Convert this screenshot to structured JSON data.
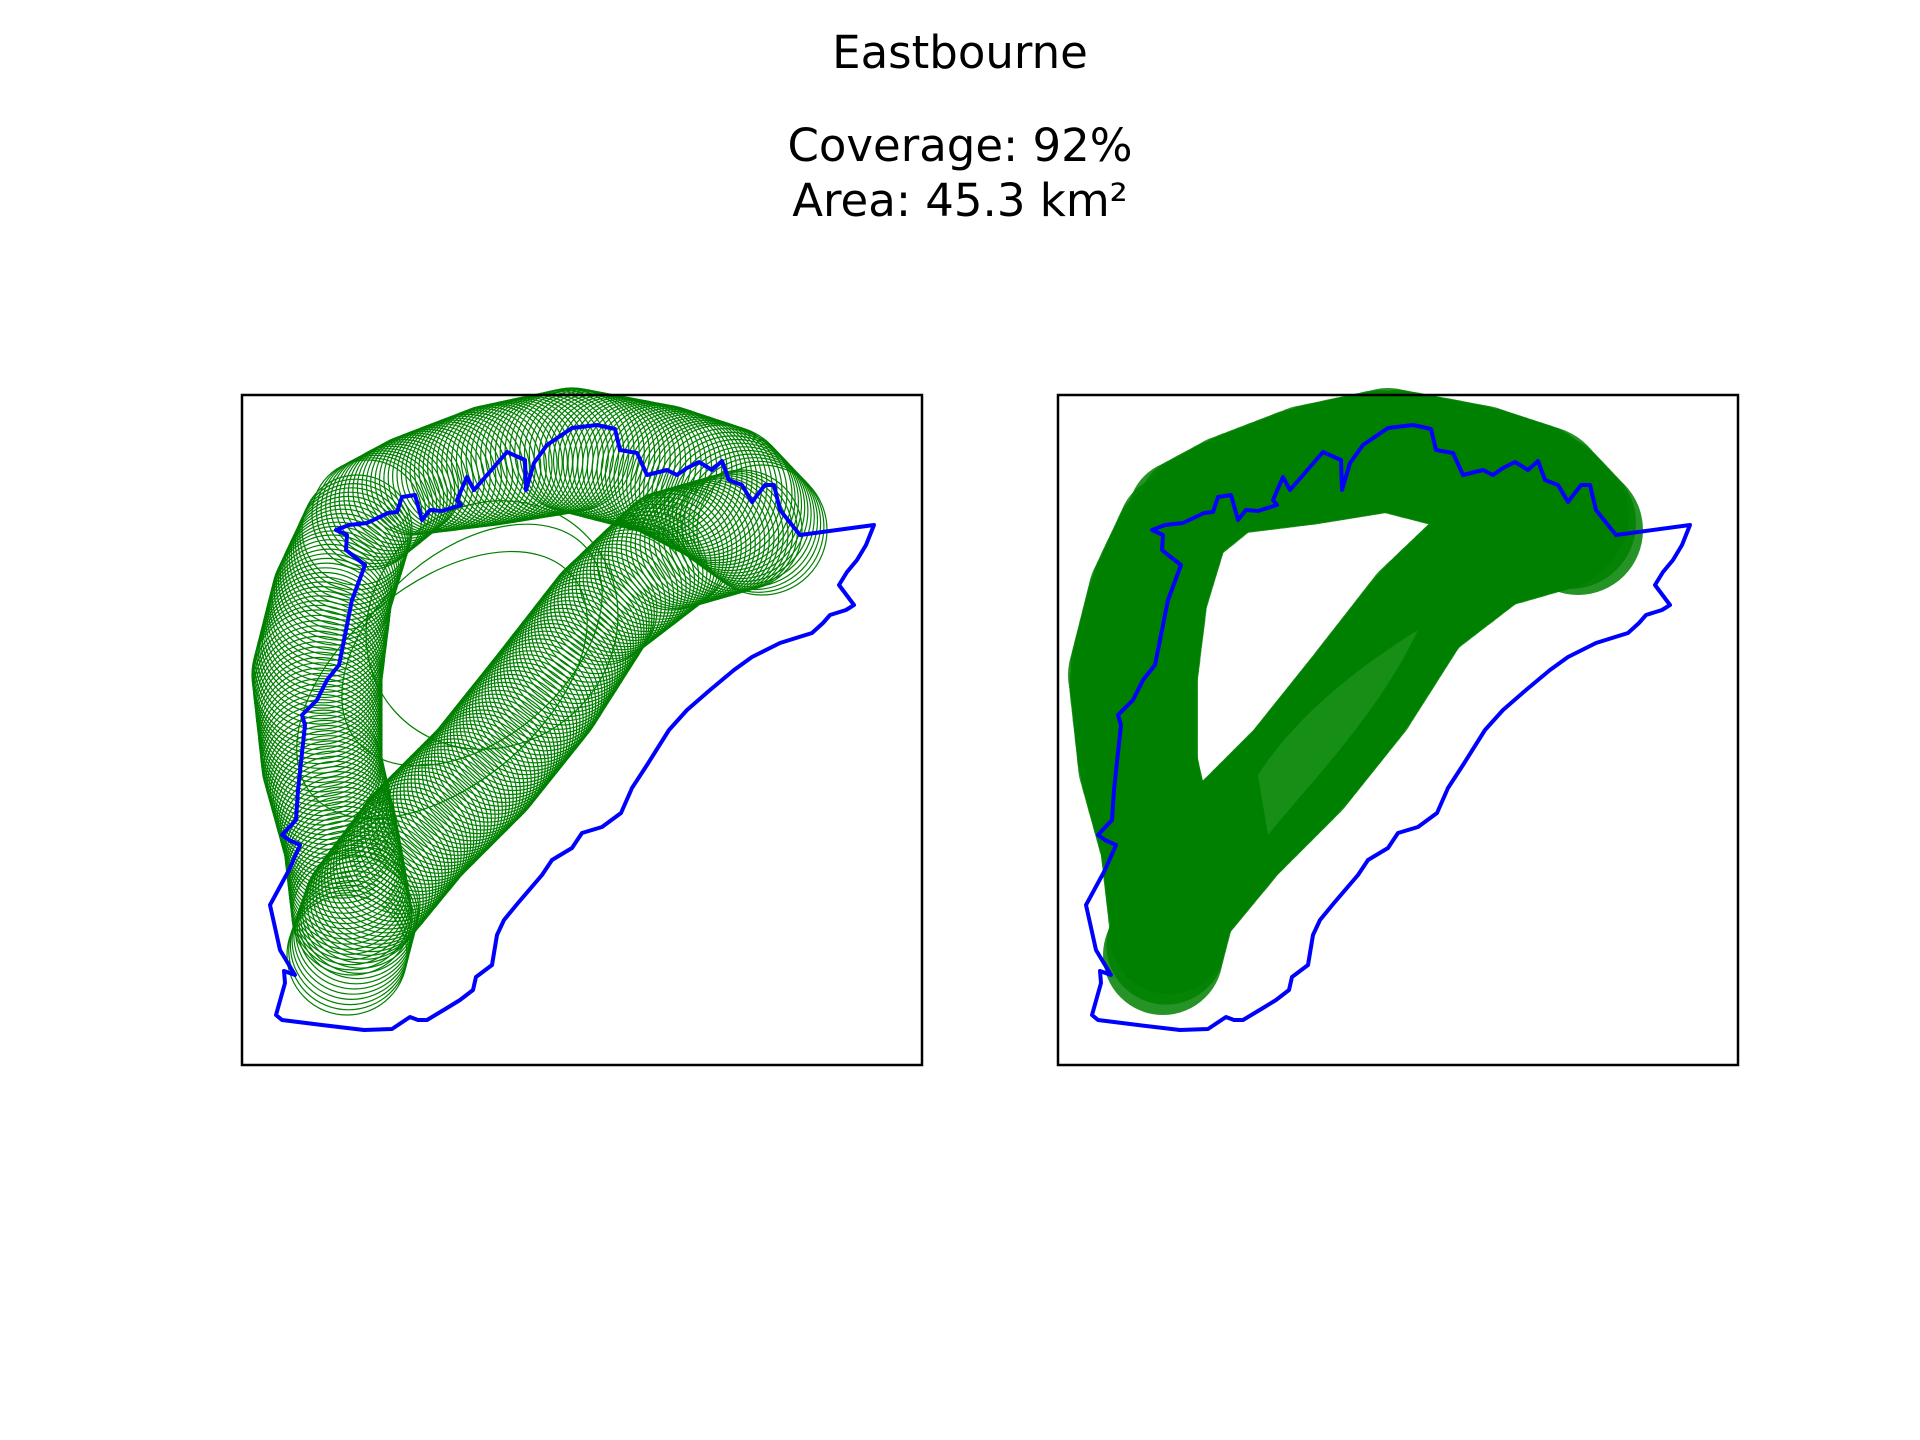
{
  "figure": {
    "title": "Eastbourne",
    "coverage_label": "Coverage: 92%",
    "area_label": "Area: 45.3 km²"
  },
  "map": {
    "boundary_color": "#0000ff",
    "coverage_color": "#008000",
    "panels": [
      {
        "id": "circle-outlines",
        "style": "outline"
      },
      {
        "id": "filled-coverage",
        "style": "filled"
      }
    ]
  }
}
